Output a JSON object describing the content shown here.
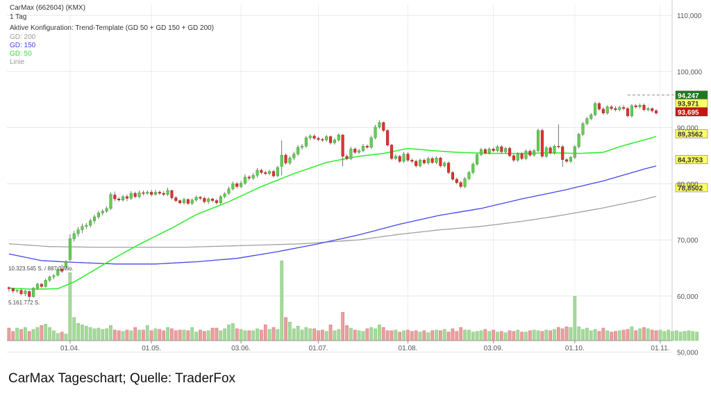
{
  "header": {
    "title": "CarMax (662604) (KMX)",
    "interval": "1 Tag",
    "config": "Aktive Konfiguration: Trend-Template (GD 50 + GD 150 + GD 200)",
    "legend": [
      {
        "label": "GD: 200",
        "color": "#9a9a9a"
      },
      {
        "label": "GD: 150",
        "color": "#4444ee"
      },
      {
        "label": "GD: 50",
        "color": "#33dd33"
      },
      {
        "label": "Linie",
        "color": "#9a9a9a"
      }
    ]
  },
  "caption": "CarMax Tageschart; Quelle: TraderFox",
  "chart_data": {
    "type": "candlestick",
    "title": "CarMax (662604) (KMX)",
    "interval": "1 Tag",
    "colors": {
      "up": "#66cc55",
      "down": "#dd3333",
      "gd50": "#33ee33",
      "gd150": "#4444ee",
      "gd200": "#a0a0a0"
    },
    "price_axis": {
      "ylim": [
        51800,
        112000
      ],
      "ticks": [
        {
          "value": 110000,
          "label": "110,000"
        },
        {
          "value": 100000,
          "label": "100,000"
        },
        {
          "value": 90000,
          "label": "90,000"
        },
        {
          "value": 80000,
          "label": "80,000"
        },
        {
          "value": 70000,
          "label": "70,000"
        },
        {
          "value": 60000,
          "label": "60,000"
        },
        {
          "value": 50000,
          "label": "50,000"
        }
      ]
    },
    "x_axis": {
      "ticks": [
        {
          "index": 15,
          "label": "01.04."
        },
        {
          "index": 35,
          "label": "01.05."
        },
        {
          "index": 57,
          "label": "03.06."
        },
        {
          "index": 76,
          "label": "01.07."
        },
        {
          "index": 98,
          "label": "01.08."
        },
        {
          "index": 119,
          "label": "03.09."
        },
        {
          "index": 139,
          "label": "01.10."
        },
        {
          "index": 160,
          "label": "01.11."
        }
      ]
    },
    "candles": [
      [
        61500,
        61300,
        61700,
        60800
      ],
      [
        61300,
        60900,
        61500,
        60500
      ],
      [
        60900,
        61000,
        61200,
        60600
      ],
      [
        61000,
        60400,
        61300,
        60100
      ],
      [
        60400,
        60900,
        61100,
        60000
      ],
      [
        60800,
        59900,
        61000,
        59200
      ],
      [
        59900,
        61400,
        61600,
        59700
      ],
      [
        61400,
        62100,
        62400,
        61100
      ],
      [
        62100,
        61700,
        62300,
        61400
      ],
      [
        61700,
        62800,
        63100,
        61500
      ],
      [
        62800,
        63400,
        63600,
        62500
      ],
      [
        63400,
        63600,
        63900,
        63000
      ],
      [
        63700,
        64800,
        65200,
        63500
      ],
      [
        64800,
        64400,
        65600,
        64100
      ],
      [
        65200,
        66100,
        66400,
        64900
      ],
      [
        66500,
        70200,
        71000,
        66200
      ],
      [
        70200,
        71100,
        71600,
        69700
      ],
      [
        71100,
        71800,
        72300,
        70600
      ],
      [
        71800,
        72400,
        72900,
        71200
      ],
      [
        72400,
        72600,
        73000,
        71900
      ],
      [
        72600,
        73400,
        73800,
        72200
      ],
      [
        73400,
        74100,
        74500,
        72900
      ],
      [
        74100,
        74800,
        75200,
        73700
      ],
      [
        74800,
        75100,
        75500,
        74300
      ],
      [
        75100,
        75600,
        76000,
        74800
      ],
      [
        75600,
        78100,
        78500,
        75300
      ],
      [
        78000,
        77300,
        78600,
        76900
      ],
      [
        77300,
        77100,
        77600,
        76800
      ],
      [
        77100,
        77700,
        78000,
        76800
      ],
      [
        77700,
        77400,
        78100,
        76900
      ],
      [
        77400,
        78300,
        78700,
        77100
      ],
      [
        78300,
        77700,
        78600,
        77400
      ],
      [
        77700,
        78400,
        78800,
        77400
      ],
      [
        78400,
        78300,
        78800,
        77900
      ],
      [
        78300,
        78500,
        78800,
        78000
      ],
      [
        78500,
        78100,
        78900,
        77700
      ],
      [
        78100,
        78500,
        78900,
        77900
      ],
      [
        78500,
        78300,
        78800,
        78000
      ],
      [
        78300,
        78100,
        78700,
        77800
      ],
      [
        78100,
        78800,
        79300,
        77800
      ],
      [
        78800,
        77500,
        78900,
        77200
      ],
      [
        77500,
        77000,
        77800,
        76700
      ],
      [
        77000,
        76600,
        77200,
        76300
      ],
      [
        76600,
        77200,
        77500,
        76300
      ],
      [
        77200,
        76500,
        77400,
        76200
      ],
      [
        76500,
        77100,
        77400,
        76200
      ],
      [
        77100,
        77600,
        77900,
        76800
      ],
      [
        77600,
        77400,
        77800,
        77100
      ],
      [
        77400,
        76800,
        77700,
        76500
      ],
      [
        76800,
        77300,
        77600,
        76400
      ],
      [
        77300,
        77000,
        77500,
        76700
      ],
      [
        77000,
        76600,
        77300,
        76300
      ],
      [
        76600,
        77700,
        78000,
        76300
      ],
      [
        77700,
        78200,
        78500,
        77400
      ],
      [
        78300,
        79100,
        79500,
        78000
      ],
      [
        79100,
        80000,
        80400,
        78800
      ],
      [
        80000,
        79500,
        80300,
        79200
      ],
      [
        79500,
        80100,
        80500,
        79200
      ],
      [
        80100,
        81200,
        81700,
        79800
      ],
      [
        81200,
        81000,
        81500,
        80600
      ],
      [
        81000,
        81500,
        81900,
        80700
      ],
      [
        81500,
        82400,
        82800,
        81100
      ],
      [
        82400,
        82000,
        82700,
        81700
      ],
      [
        82000,
        81800,
        82300,
        81500
      ],
      [
        81800,
        82200,
        82500,
        81500
      ],
      [
        82200,
        81400,
        82500,
        81100
      ],
      [
        81400,
        82900,
        83200,
        81200
      ],
      [
        83100,
        85100,
        87700,
        81500
      ],
      [
        85100,
        83700,
        85400,
        83400
      ],
      [
        83700,
        84600,
        84900,
        83400
      ],
      [
        84600,
        85300,
        85700,
        84200
      ],
      [
        85300,
        86500,
        86900,
        85000
      ],
      [
        86500,
        86700,
        87100,
        86100
      ],
      [
        86700,
        88200,
        88500,
        86400
      ],
      [
        88200,
        88500,
        88800,
        87800
      ],
      [
        88500,
        88100,
        88800,
        87800
      ],
      [
        88100,
        87900,
        88400,
        87600
      ],
      [
        87900,
        87800,
        88200,
        87500
      ],
      [
        87800,
        88400,
        88700,
        87500
      ],
      [
        88400,
        87300,
        88600,
        87000
      ],
      [
        87300,
        87800,
        88100,
        87000
      ],
      [
        87800,
        88700,
        89000,
        87500
      ],
      [
        88700,
        84900,
        88800,
        83100
      ],
      [
        84900,
        84500,
        85200,
        84200
      ],
      [
        84500,
        86200,
        86600,
        84200
      ],
      [
        86200,
        85600,
        86500,
        85300
      ],
      [
        85600,
        85900,
        86200,
        85300
      ],
      [
        85900,
        86700,
        87100,
        85600
      ],
      [
        86700,
        86500,
        87000,
        86200
      ],
      [
        86500,
        88200,
        88600,
        86200
      ],
      [
        88200,
        90100,
        90500,
        87900
      ],
      [
        90100,
        90900,
        91300,
        89800
      ],
      [
        90900,
        89500,
        91100,
        89200
      ],
      [
        89500,
        86900,
        89700,
        86600
      ],
      [
        86900,
        84500,
        87100,
        84200
      ],
      [
        84500,
        84900,
        85300,
        84200
      ],
      [
        84900,
        84000,
        85100,
        83700
      ],
      [
        84000,
        85300,
        85700,
        83700
      ],
      [
        85300,
        84200,
        85600,
        83900
      ],
      [
        84200,
        84000,
        84500,
        83700
      ],
      [
        84000,
        83200,
        84300,
        82900
      ],
      [
        83200,
        84200,
        84500,
        82900
      ],
      [
        84200,
        83700,
        84500,
        83400
      ],
      [
        83700,
        84500,
        84800,
        83400
      ],
      [
        84500,
        83800,
        84800,
        83500
      ],
      [
        83800,
        84600,
        84900,
        83500
      ],
      [
        84600,
        83200,
        84800,
        82900
      ],
      [
        83200,
        83700,
        84000,
        82900
      ],
      [
        83700,
        82000,
        84000,
        81700
      ],
      [
        82000,
        80800,
        82300,
        80500
      ],
      [
        80800,
        80200,
        81100,
        79900
      ],
      [
        80200,
        79500,
        80500,
        79200
      ],
      [
        79500,
        80900,
        81200,
        79200
      ],
      [
        80900,
        82000,
        82300,
        80600
      ],
      [
        82000,
        83500,
        83800,
        81700
      ],
      [
        83500,
        85200,
        85500,
        83200
      ],
      [
        85200,
        86100,
        86400,
        84900
      ],
      [
        86100,
        85500,
        86400,
        85200
      ],
      [
        85500,
        86200,
        86500,
        85200
      ],
      [
        86200,
        85900,
        86500,
        85600
      ],
      [
        85900,
        86600,
        86900,
        85600
      ],
      [
        86600,
        85700,
        86900,
        85400
      ],
      [
        85700,
        86300,
        86600,
        85400
      ],
      [
        86300,
        85000,
        86600,
        84700
      ],
      [
        85000,
        84200,
        85300,
        83900
      ],
      [
        84200,
        85300,
        85600,
        83900
      ],
      [
        85300,
        84500,
        85600,
        84200
      ],
      [
        84500,
        85800,
        86100,
        84200
      ],
      [
        85800,
        85100,
        86100,
        84800
      ],
      [
        85100,
        85900,
        86200,
        84800
      ],
      [
        85900,
        89500,
        89800,
        85600
      ],
      [
        89500,
        84900,
        89800,
        84600
      ],
      [
        84900,
        86400,
        86700,
        84600
      ],
      [
        86400,
        85500,
        86700,
        85200
      ],
      [
        85500,
        86700,
        87000,
        85200
      ],
      [
        86700,
        86600,
        90600,
        86300
      ],
      [
        86600,
        84300,
        86900,
        83000
      ],
      [
        84300,
        84000,
        84600,
        83700
      ],
      [
        84000,
        84700,
        85000,
        83700
      ],
      [
        84700,
        86600,
        86900,
        84400
      ],
      [
        86600,
        88800,
        89100,
        86300
      ],
      [
        88800,
        90700,
        91000,
        88500
      ],
      [
        90700,
        91600,
        91900,
        90400
      ],
      [
        91600,
        92300,
        92600,
        91300
      ],
      [
        92300,
        94300,
        94600,
        92000
      ],
      [
        94300,
        93300,
        94600,
        93000
      ],
      [
        93300,
        92600,
        93600,
        92300
      ],
      [
        92600,
        93700,
        94000,
        92300
      ],
      [
        93700,
        93400,
        94000,
        93100
      ],
      [
        93400,
        93200,
        93800,
        92900
      ],
      [
        93200,
        93600,
        93900,
        92900
      ],
      [
        93600,
        93400,
        94000,
        93100
      ],
      [
        93400,
        92100,
        93700,
        91800
      ],
      [
        92100,
        93900,
        94200,
        91800
      ],
      [
        93900,
        93700,
        94200,
        93400
      ],
      [
        93700,
        94000,
        94300,
        93400
      ],
      [
        94000,
        93200,
        94300,
        92900
      ],
      [
        93200,
        93400,
        93700,
        92900
      ],
      [
        93400,
        93000,
        93600,
        92700
      ],
      [
        93000,
        92600,
        93300,
        92300
      ]
    ],
    "volume_scale_max": 10323545,
    "volume": [
      1.9,
      1.4,
      1.9,
      1.7,
      2.0,
      1.4,
      1.7,
      2.0,
      2.3,
      2.5,
      2.0,
      1.5,
      1.1,
      1.3,
      1.0,
      10.3,
      3.5,
      2.6,
      2.4,
      2.2,
      2.0,
      1.8,
      1.9,
      1.7,
      1.8,
      2.3,
      1.6,
      1.5,
      1.4,
      1.6,
      1.5,
      2.0,
      1.6,
      1.6,
      2.3,
      1.5,
      1.8,
      1.7,
      1.5,
      2.0,
      1.8,
      1.5,
      1.6,
      1.6,
      1.5,
      2.0,
      1.3,
      1.6,
      1.4,
      1.5,
      1.9,
      1.9,
      1.5,
      1.8,
      2.4,
      2.6,
      1.8,
      1.7,
      1.5,
      1.5,
      1.5,
      1.8,
      1.6,
      2.4,
      1.7,
      2.0,
      1.7,
      12.1,
      3.5,
      2.8,
      1.8,
      2.2,
      1.6,
      2.0,
      1.8,
      1.8,
      1.5,
      1.6,
      1.4,
      2.4,
      1.5,
      1.7,
      4.3,
      2.3,
      1.9,
      1.6,
      1.5,
      1.4,
      1.8,
      2.0,
      1.8,
      2.4,
      2.0,
      1.5,
      1.5,
      1.6,
      1.3,
      1.5,
      1.6,
      1.4,
      1.5,
      1.3,
      1.5,
      1.2,
      1.5,
      1.6,
      1.5,
      1.7,
      1.3,
      1.8,
      1.4,
      2.0,
      1.6,
      1.6,
      1.3,
      1.4,
      1.5,
      1.7,
      1.4,
      1.6,
      1.3,
      1.4,
      1.2,
      1.5,
      1.4,
      1.6,
      1.3,
      1.3,
      1.5,
      1.6,
      1.5,
      1.4,
      1.6,
      1.5,
      1.7,
      2.0,
      1.8,
      2.1,
      2.0,
      6.7,
      2.1,
      1.7,
      1.9,
      1.5,
      1.7,
      1.4,
      1.9,
      1.5,
      1.3,
      1.4,
      1.5,
      1.6,
      1.7,
      2.1,
      1.5,
      1.8,
      2.0,
      1.8,
      1.6,
      1.5,
      1.6,
      1.4,
      1.6,
      1.4,
      1.5,
      1.3,
      1.4,
      1.5,
      1.4,
      1.3
    ],
    "volume_labels": [
      "10.323.545 S. / 887,3 Mio.",
      "5.161.772 S."
    ],
    "gd50": [
      [
        0,
        61400
      ],
      [
        6,
        61200
      ],
      [
        12,
        61300
      ],
      [
        16,
        62500
      ],
      [
        20,
        64200
      ],
      [
        26,
        66800
      ],
      [
        32,
        69200
      ],
      [
        40,
        72100
      ],
      [
        46,
        74500
      ],
      [
        54,
        76800
      ],
      [
        62,
        79500
      ],
      [
        70,
        81800
      ],
      [
        78,
        83800
      ],
      [
        86,
        84900
      ],
      [
        92,
        85400
      ],
      [
        98,
        86300
      ],
      [
        104,
        85900
      ],
      [
        110,
        85600
      ],
      [
        118,
        85400
      ],
      [
        126,
        85400
      ],
      [
        134,
        85500
      ],
      [
        140,
        85400
      ],
      [
        146,
        85600
      ],
      [
        150,
        86600
      ],
      [
        158,
        88200
      ],
      [
        165,
        90000
      ]
    ],
    "gd150": [
      [
        0,
        67500
      ],
      [
        8,
        66300
      ],
      [
        16,
        66000
      ],
      [
        26,
        65700
      ],
      [
        36,
        65700
      ],
      [
        46,
        66100
      ],
      [
        56,
        66700
      ],
      [
        66,
        67900
      ],
      [
        76,
        69300
      ],
      [
        86,
        70900
      ],
      [
        96,
        72800
      ],
      [
        106,
        74400
      ],
      [
        116,
        75600
      ],
      [
        126,
        77300
      ],
      [
        136,
        78800
      ],
      [
        146,
        80500
      ],
      [
        156,
        82600
      ],
      [
        165,
        84300
      ]
    ],
    "gd200": [
      [
        0,
        69300
      ],
      [
        10,
        68800
      ],
      [
        20,
        68700
      ],
      [
        30,
        68700
      ],
      [
        44,
        68700
      ],
      [
        58,
        69000
      ],
      [
        72,
        69300
      ],
      [
        86,
        70000
      ],
      [
        96,
        71000
      ],
      [
        106,
        71800
      ],
      [
        116,
        72400
      ],
      [
        126,
        73300
      ],
      [
        136,
        74400
      ],
      [
        146,
        75700
      ],
      [
        156,
        77200
      ],
      [
        165,
        78900
      ]
    ],
    "resistance": {
      "from": 152,
      "to": 166,
      "value": 95800
    },
    "badges": [
      {
        "label": "94,247",
        "value": 95800,
        "bg": "#1f7a1f",
        "fg": "#ffffff"
      },
      {
        "label": "93,971",
        "value": 94350,
        "bg": "#ffff66",
        "fg": "#333333"
      },
      {
        "label": "93,695",
        "value": 92800,
        "bg": "#cc1111",
        "fg": "#ffffff"
      },
      {
        "label": "89,3562",
        "value": 88900,
        "bg": "#ffff66",
        "fg": "#333333"
      },
      {
        "label": "84,3753",
        "value": 84300,
        "bg": "#ffff66",
        "fg": "#333333"
      },
      {
        "label": "78,8502",
        "value": 79300,
        "bg": "#ffff66",
        "fg": "#333333"
      }
    ]
  }
}
